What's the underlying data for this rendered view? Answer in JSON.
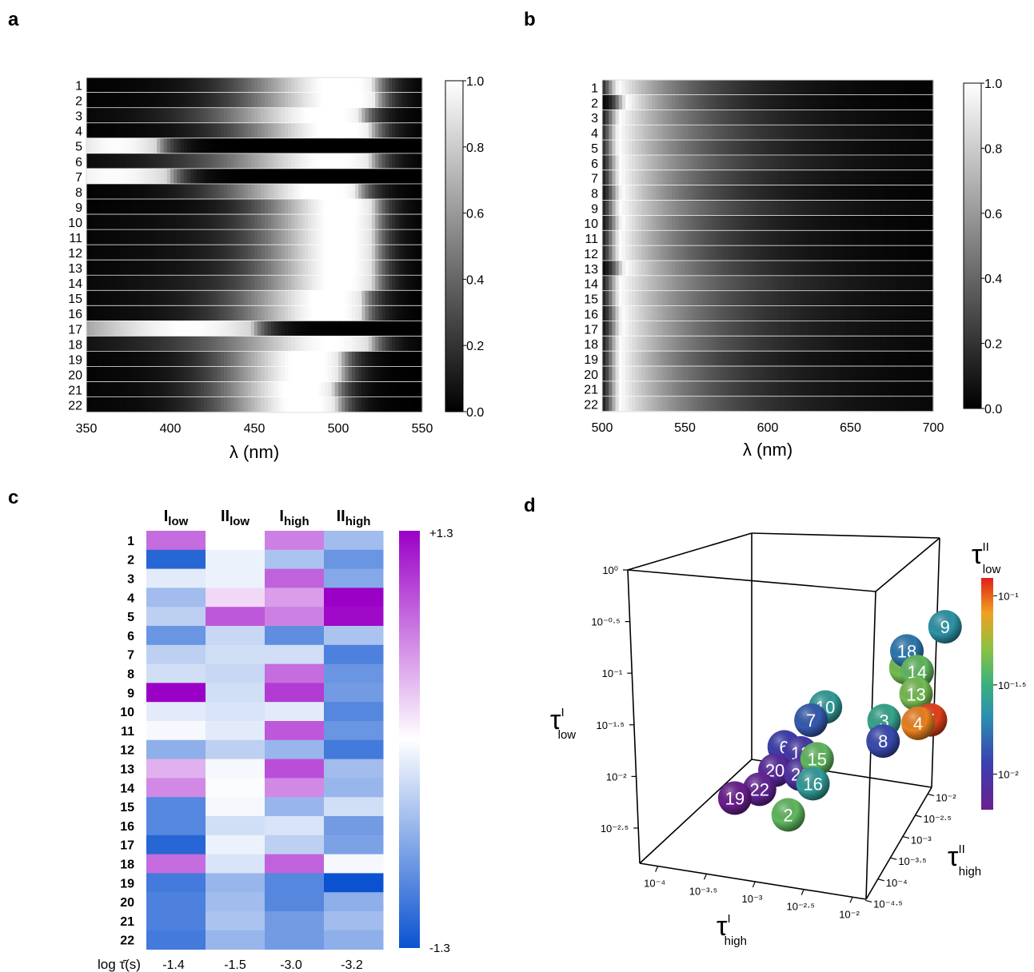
{
  "chart_data": [
    {
      "panel": "a",
      "type": "heatmap",
      "xlabel": "λ (nm)",
      "xlim": [
        350,
        550
      ],
      "xticks": [
        "350",
        "400",
        "450",
        "500",
        "550"
      ],
      "rows": [
        "1",
        "2",
        "3",
        "4",
        "5",
        "6",
        "7",
        "8",
        "9",
        "10",
        "11",
        "12",
        "13",
        "14",
        "15",
        "16",
        "17",
        "18",
        "19",
        "20",
        "21",
        "22"
      ],
      "colorbar": {
        "min": 0.0,
        "max": 1.0,
        "ticks": [
          "0.0",
          "0.2",
          "0.4",
          "0.6",
          "0.8",
          "1.0"
        ]
      },
      "peak_nm": [
        502,
        503,
        494,
        500,
        373,
        500,
        380,
        492,
        502,
        502,
        502,
        502,
        502,
        502,
        495,
        495,
        430,
        500,
        482,
        482,
        478,
        480
      ],
      "width_nm": [
        55,
        55,
        60,
        55,
        50,
        60,
        70,
        55,
        45,
        45,
        45,
        45,
        45,
        45,
        50,
        50,
        80,
        55,
        48,
        48,
        48,
        48
      ],
      "floor": [
        0.05,
        0.05,
        0.1,
        0.05,
        0.35,
        0.2,
        0.5,
        0.05,
        0.05,
        0.1,
        0.1,
        0.1,
        0.1,
        0.15,
        0.1,
        0.1,
        0.55,
        0.3,
        0.05,
        0.05,
        0.05,
        0.05
      ]
    },
    {
      "panel": "b",
      "type": "heatmap",
      "xlabel": "λ (nm)",
      "xlim": [
        500,
        700
      ],
      "xticks": [
        "500",
        "550",
        "600",
        "650",
        "700"
      ],
      "rows": [
        "1",
        "2",
        "3",
        "4",
        "5",
        "6",
        "7",
        "8",
        "9",
        "10",
        "11",
        "12",
        "13",
        "14",
        "15",
        "16",
        "17",
        "18",
        "19",
        "20",
        "21",
        "22"
      ],
      "colorbar": {
        "min": 0.0,
        "max": 1.0,
        "ticks": [
          "0.0",
          "0.2",
          "0.4",
          "0.6",
          "0.8",
          "1.0"
        ]
      },
      "peak_nm": [
        511,
        516,
        512,
        511,
        511,
        512,
        512,
        513,
        512,
        513,
        512,
        512,
        515,
        512,
        512,
        513,
        513,
        512,
        512,
        512,
        512,
        512
      ],
      "decay_nm": [
        45,
        40,
        50,
        55,
        50,
        55,
        50,
        45,
        55,
        45,
        45,
        45,
        50,
        60,
        55,
        55,
        55,
        55,
        45,
        50,
        50,
        55
      ]
    },
    {
      "panel": "c",
      "type": "heatmap",
      "columns": [
        {
          "main": "I",
          "sub": "low"
        },
        {
          "main": "II",
          "sub": "low"
        },
        {
          "main": "I",
          "sub": "high"
        },
        {
          "main": "II",
          "sub": "high"
        }
      ],
      "rows": [
        "1",
        "2",
        "3",
        "4",
        "5",
        "6",
        "7",
        "8",
        "9",
        "10",
        "11",
        "12",
        "13",
        "14",
        "15",
        "16",
        "17",
        "18",
        "19",
        "20",
        "21",
        "22"
      ],
      "values": [
        [
          0.75,
          0.0,
          0.65,
          -0.5
        ],
        [
          -1.15,
          -0.1,
          -0.45,
          -0.8
        ],
        [
          -0.15,
          -0.1,
          0.8,
          -0.65
        ],
        [
          -0.5,
          0.2,
          0.5,
          1.3
        ],
        [
          -0.35,
          0.85,
          0.65,
          1.25
        ],
        [
          -0.8,
          -0.3,
          -0.85,
          -0.45
        ],
        [
          -0.35,
          -0.25,
          -0.25,
          -0.95
        ],
        [
          -0.25,
          -0.3,
          0.75,
          -0.8
        ],
        [
          1.3,
          -0.25,
          1.0,
          -0.75
        ],
        [
          -0.15,
          -0.2,
          -0.15,
          -0.9
        ],
        [
          -0.05,
          -0.15,
          0.85,
          -0.8
        ],
        [
          -0.6,
          -0.35,
          -0.55,
          -1.0
        ],
        [
          0.4,
          -0.05,
          0.9,
          -0.5
        ],
        [
          0.6,
          -0.02,
          0.6,
          -0.55
        ],
        [
          -0.9,
          -0.05,
          -0.55,
          -0.25
        ],
        [
          -0.9,
          -0.25,
          -0.2,
          -0.75
        ],
        [
          -1.15,
          -0.1,
          -0.35,
          -0.7
        ],
        [
          0.75,
          -0.2,
          0.8,
          -0.05
        ],
        [
          -1.0,
          -0.55,
          -0.9,
          -1.3
        ],
        [
          -0.95,
          -0.5,
          -0.9,
          -0.6
        ],
        [
          -0.95,
          -0.45,
          -0.75,
          -0.5
        ],
        [
          -1.0,
          -0.55,
          -0.75,
          -0.6
        ]
      ],
      "colorbar": {
        "min": -1.3,
        "max": 1.3,
        "ticks": [
          "+1.3",
          "-1.3"
        ]
      },
      "footer_label": "log τ̄(s)",
      "footer_values": [
        "-1.4",
        "-1.5",
        "-3.0",
        "-3.2"
      ]
    },
    {
      "panel": "d",
      "type": "scatter",
      "title": "",
      "x_axis": {
        "main": "τ",
        "sup": "I",
        "sub": "high",
        "range": [
          -4.2,
          -2.0
        ],
        "ticks": [
          "10⁻⁴",
          "10⁻³·⁵",
          "10⁻³",
          "10⁻²·⁵",
          "10⁻²"
        ]
      },
      "y_axis": {
        "main": "τ",
        "sup": "I",
        "sub": "low",
        "range": [
          -2.8,
          0.0
        ],
        "ticks": [
          "10⁰",
          "10⁻⁰·⁵",
          "10⁻¹",
          "10⁻¹·⁵",
          "10⁻²",
          "10⁻²·⁵"
        ]
      },
      "z_axis": {
        "main": "τ",
        "sup": "II",
        "sub": "high",
        "range": [
          -4.7,
          -2.0
        ],
        "ticks": [
          "10⁻²",
          "10⁻²·⁵",
          "10⁻³",
          "10⁻³·⁵",
          "10⁻⁴",
          "10⁻⁴·⁵"
        ]
      },
      "color_axis": {
        "main": "τ",
        "sup": "II",
        "sub": "low",
        "log_range": [
          -2.2,
          -0.9
        ],
        "ticks": [
          "10⁻¹",
          "10⁻¹·⁵",
          "10⁻²"
        ]
      },
      "points": [
        {
          "label": "9",
          "x": -2.2,
          "y": -0.35,
          "z": -2.3,
          "c": -1.65
        },
        {
          "label": "18",
          "x": -2.45,
          "y": -0.7,
          "z": -2.6,
          "c": -1.75
        },
        {
          "label": "1",
          "x": -2.5,
          "y": -0.95,
          "z": -2.5,
          "c": -1.35
        },
        {
          "label": "14",
          "x": -2.35,
          "y": -0.95,
          "z": -2.6,
          "c": -1.4
        },
        {
          "label": "13",
          "x": -2.3,
          "y": -1.2,
          "z": -2.75,
          "c": -1.35
        },
        {
          "label": "5",
          "x": -2.1,
          "y": -1.45,
          "z": -2.9,
          "c": -0.95
        },
        {
          "label": "4",
          "x": -2.2,
          "y": -1.5,
          "z": -2.95,
          "c": -1.05
        },
        {
          "label": "3",
          "x": -2.55,
          "y": -1.55,
          "z": -2.9,
          "c": -1.55
        },
        {
          "label": "8",
          "x": -2.5,
          "y": -1.75,
          "z": -3.05,
          "c": -1.9
        },
        {
          "label": "10",
          "x": -3.0,
          "y": -1.4,
          "z": -3.2,
          "c": -1.6
        },
        {
          "label": "7",
          "x": -3.1,
          "y": -1.55,
          "z": -3.3,
          "c": -1.85
        },
        {
          "label": "6",
          "x": -3.4,
          "y": -1.95,
          "z": -3.2,
          "c": -1.95
        },
        {
          "label": "12",
          "x": -3.2,
          "y": -1.95,
          "z": -3.3,
          "c": -2.0
        },
        {
          "label": "15",
          "x": -3.0,
          "y": -1.95,
          "z": -3.4,
          "c": -1.4
        },
        {
          "label": "16",
          "x": -3.0,
          "y": -2.2,
          "z": -3.5,
          "c": -1.6
        },
        {
          "label": "20",
          "x": -3.45,
          "y": -2.2,
          "z": -3.3,
          "c": -2.1
        },
        {
          "label": "21",
          "x": -3.2,
          "y": -2.2,
          "z": -3.3,
          "c": -2.05
        },
        {
          "label": "22",
          "x": -3.6,
          "y": -2.45,
          "z": -3.3,
          "c": -2.15
        },
        {
          "label": "19",
          "x": -3.8,
          "y": -2.55,
          "z": -3.4,
          "c": -2.2
        },
        {
          "label": "2",
          "x": -3.2,
          "y": -2.55,
          "z": -3.6,
          "c": -1.4
        }
      ]
    }
  ],
  "panel_labels": [
    "a",
    "b",
    "c",
    "d"
  ]
}
